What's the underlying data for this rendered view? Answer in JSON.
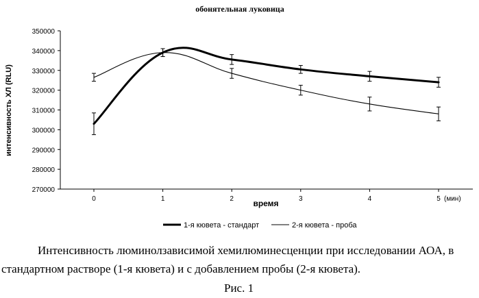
{
  "chart_data": {
    "type": "line",
    "title": "обонятельная луковица",
    "xlabel": "время",
    "ylabel": "интенсивность ХЛ (RLU)",
    "x_unit_label": "(мин)",
    "categories": [
      "0",
      "1",
      "2",
      "3",
      "4",
      "5"
    ],
    "x": [
      0,
      1,
      2,
      3,
      4,
      5
    ],
    "ylim": [
      270000,
      350000
    ],
    "yticks": [
      270000,
      280000,
      290000,
      300000,
      310000,
      320000,
      330000,
      340000,
      350000
    ],
    "ytick_labels": [
      "270000",
      "280000",
      "290000",
      "300000",
      "310000",
      "320000",
      "330000",
      "340000",
      "350000"
    ],
    "grid": false,
    "legend_position": "bottom",
    "series": [
      {
        "name": "1-я кювета - стандарт",
        "style": "thick",
        "color": "#000000",
        "values": [
          303000,
          339000,
          335500,
          330500,
          327000,
          324000
        ],
        "errors": [
          5500,
          2000,
          2500,
          2000,
          2500,
          2500
        ]
      },
      {
        "name": "2-я кювета - проба",
        "style": "thin",
        "color": "#000000",
        "values": [
          326500,
          339000,
          328500,
          320000,
          313000,
          308000
        ],
        "errors": [
          2000,
          2000,
          2500,
          2500,
          3500,
          3500
        ]
      }
    ]
  },
  "caption": {
    "line1": "Интенсивность люминолзависимой хемилюминесценции при исследовании АОА, в",
    "line2": "стандартном растворе (1-я кювета) и с добавлением пробы (2-я кювета).",
    "figure_label": "Рис. 1"
  }
}
